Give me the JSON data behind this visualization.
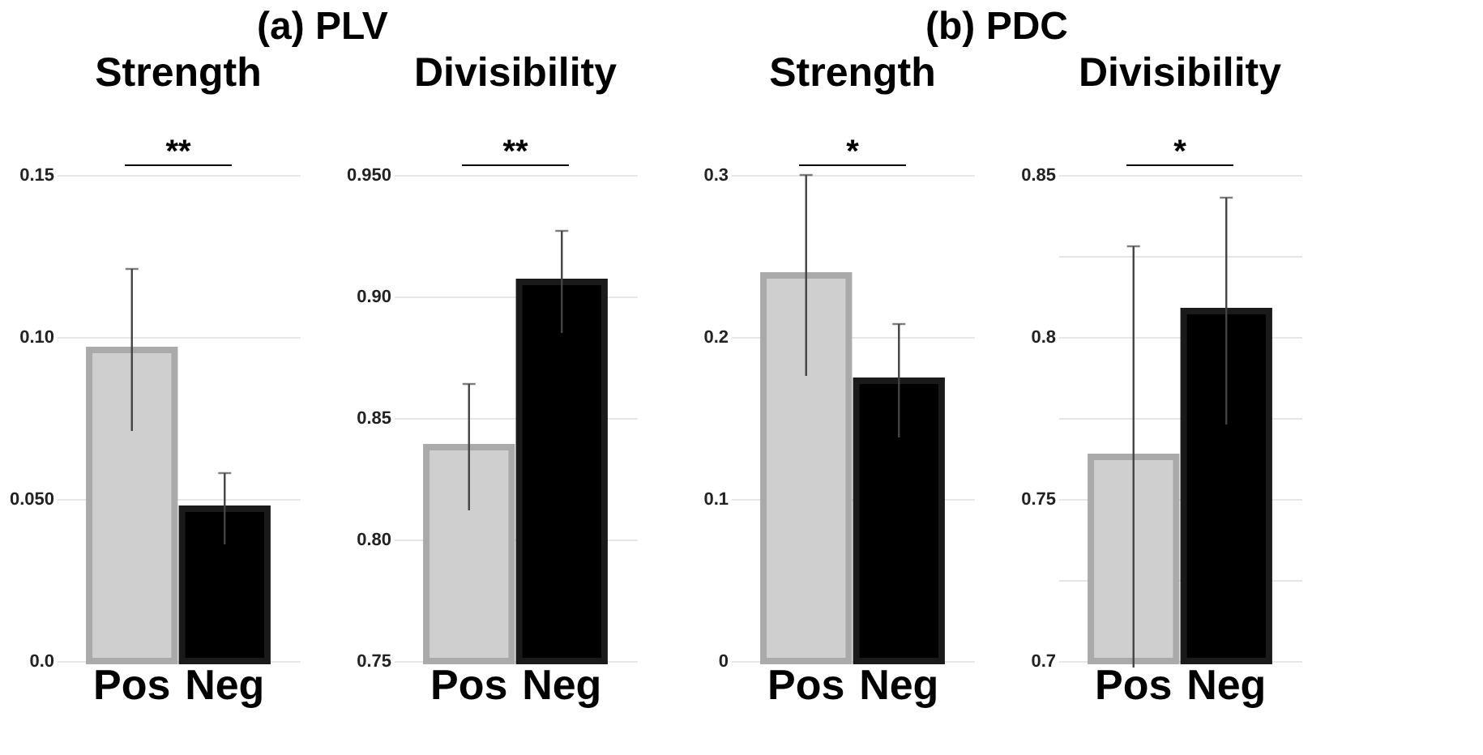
{
  "chart_data": [
    {
      "type": "bar",
      "title": "Strength",
      "categories": [
        "Pos",
        "Neg"
      ],
      "values": [
        0.096,
        0.047
      ],
      "errors": [
        0.025,
        0.011
      ],
      "colors": [
        "#d0cfcf",
        "#000000"
      ],
      "ylim": [
        0,
        0.15
      ],
      "yticks": [
        {
          "value": 0,
          "label": "0.0"
        },
        {
          "value": 0.05,
          "label": "0.050"
        },
        {
          "value": 0.1,
          "label": "0.10"
        },
        0.15
      ],
      "grid": "y",
      "annotations": [
        "(a) PLV",
        "**"
      ]
    },
    {
      "type": "bar",
      "title": "Divisibility",
      "categories": [
        "Pos",
        "Neg"
      ],
      "values": [
        0.838,
        0.906
      ],
      "errors": [
        0.026,
        0.021
      ],
      "colors": [
        "#d0cfcf",
        "#000000"
      ],
      "ylim": [
        0.75,
        0.95
      ],
      "yticks": [
        0.75,
        {
          "value": 0.8,
          "label": "0.80"
        },
        0.85,
        {
          "value": 0.9,
          "label": "0.90"
        },
        {
          "value": 0.95,
          "label": "0.950"
        }
      ],
      "grid": "y",
      "annotations": [
        "**"
      ]
    },
    {
      "type": "bar",
      "title": "Strength",
      "categories": [
        "Pos",
        "Neg"
      ],
      "values": [
        0.238,
        0.173
      ],
      "errors": [
        0.062,
        0.035
      ],
      "colors": [
        "#d0cfcf",
        "#000000"
      ],
      "ylim": [
        0,
        0.3
      ],
      "yticks": [
        0,
        0.1,
        0.2,
        0.3
      ],
      "grid": "y",
      "annotations": [
        "(b) PDC",
        "*"
      ]
    },
    {
      "type": "bar",
      "title": "Divisibility",
      "categories": [
        "Pos",
        "Neg"
      ],
      "values": [
        0.763,
        0.808
      ],
      "errors": [
        0.065,
        0.035
      ],
      "colors": [
        "#d0cfcf",
        "#000000"
      ],
      "ylim": [
        0.7,
        0.85
      ],
      "yticks": [
        0.7,
        {
          "value": 0.725,
          "label": null
        },
        0.75,
        {
          "value": 0.775,
          "label": null
        },
        0.8,
        {
          "value": 0.825,
          "label": null
        },
        0.85
      ],
      "grid": "y",
      "annotations": [
        "*"
      ]
    }
  ]
}
